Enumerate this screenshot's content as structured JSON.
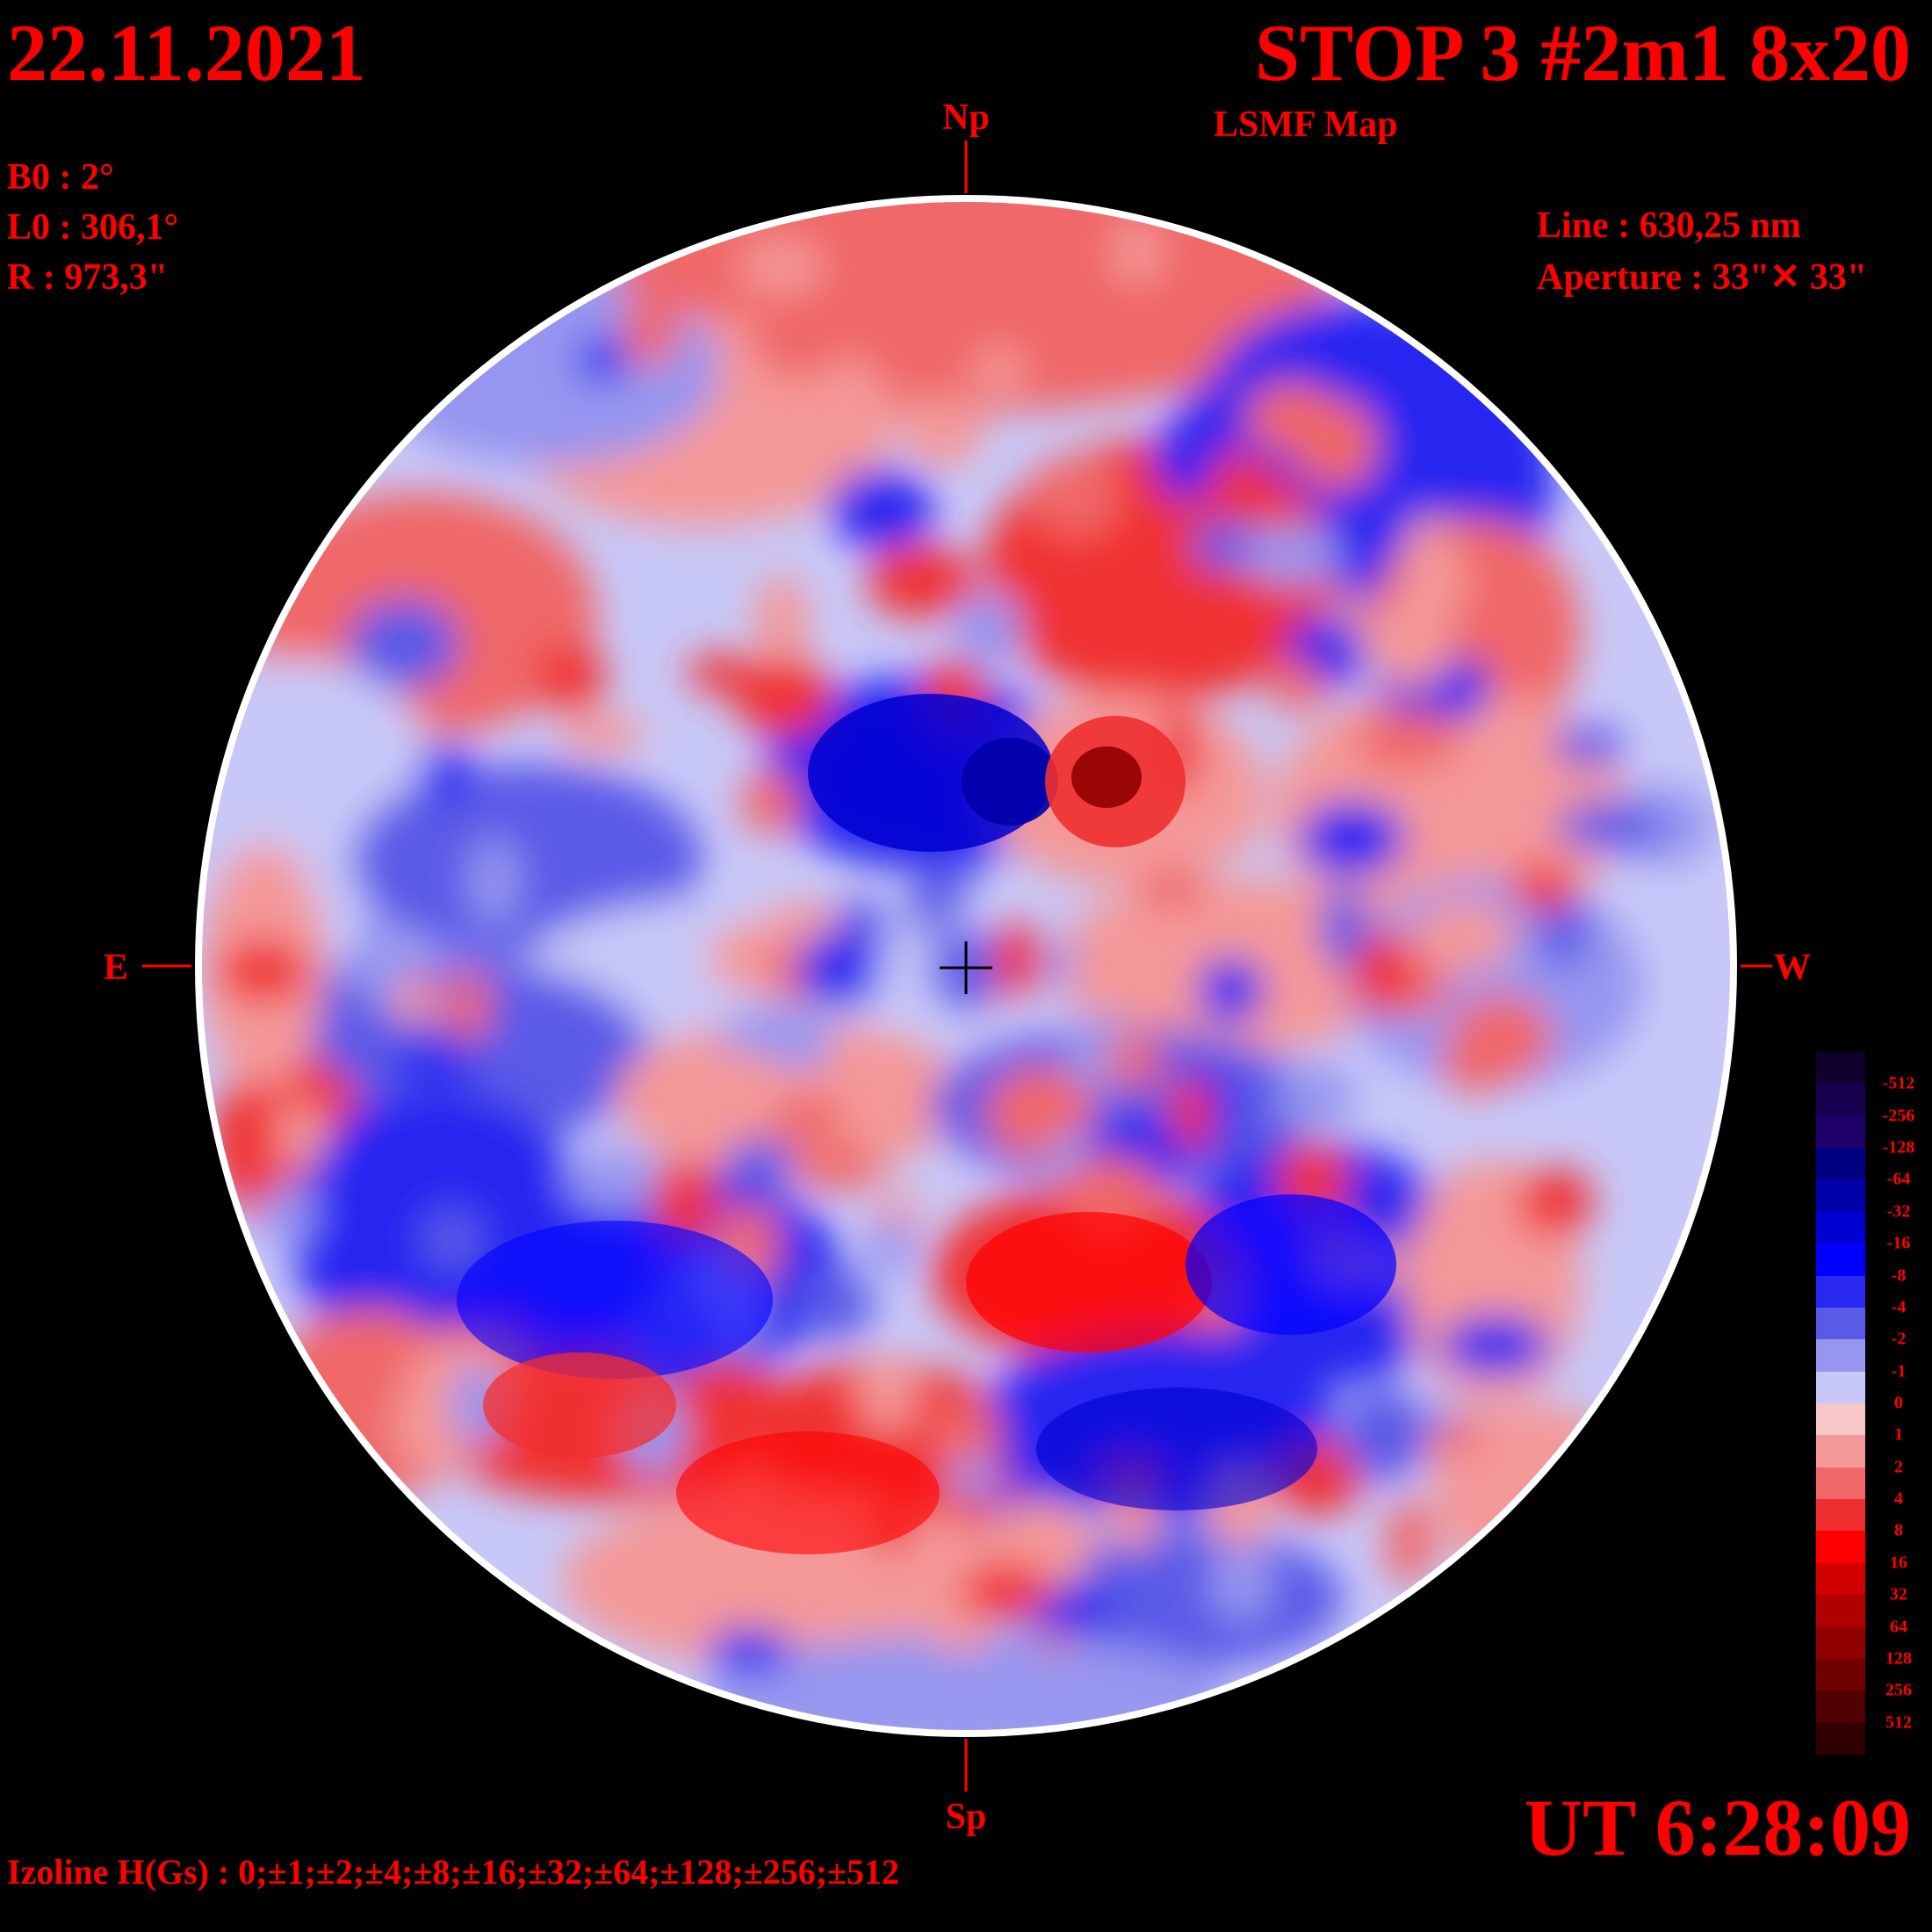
{
  "header": {
    "date": "22.11.2021",
    "title": "STOP 3 #2m1 8x20",
    "subtitle": "LSMF  Map"
  },
  "params": [
    "B0 : 2°",
    "L0 : 306,1°",
    "R  : 973,3\""
  ],
  "instrument": {
    "line": "Line :  630,25 nm",
    "aperture": "Aperture : 33\"✕ 33\""
  },
  "directions": {
    "north": "Np",
    "south": "Sp",
    "east": "E",
    "west": "W"
  },
  "time": "UT 6:28:09",
  "izoline": "Izoline H(Gs) : 0;±1;±2;±4;±8;±16;±32;±64;±128;±256;±512",
  "colorbar": {
    "labels": [
      "-512",
      "-256",
      "-128",
      "-64",
      "-32",
      "-16",
      "-8",
      "-4",
      "-2",
      "-1",
      "0",
      "1",
      "2",
      "4",
      "8",
      "16",
      "32",
      "64",
      "128",
      "256",
      "512"
    ],
    "colors": [
      "#100030",
      "#180050",
      "#20006a",
      "#000080",
      "#0000a8",
      "#0000d0",
      "#0000ff",
      "#2828f0",
      "#5a5ae8",
      "#9696f0",
      "#c8c8f8",
      "#f8c8c8",
      "#f49898",
      "#f06868",
      "#f03030",
      "#ff0000",
      "#d00000",
      "#b00000",
      "#900000",
      "#700000",
      "#500000",
      "#300000"
    ]
  }
}
